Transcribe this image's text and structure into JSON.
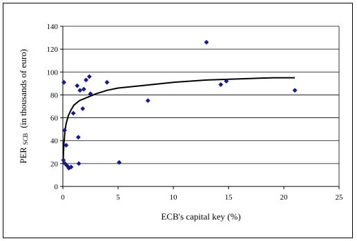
{
  "chart_data": {
    "type": "scatter",
    "title": "",
    "xlabel": "ECB's capital key (%)",
    "ylabel": "PER",
    "ylabel_subscript": "SCB",
    "ylabel_suffix": "(in thousands of euro)",
    "xlim": [
      0,
      25
    ],
    "ylim": [
      0,
      140
    ],
    "x_ticks": [
      0,
      5,
      10,
      15,
      20,
      25
    ],
    "y_ticks": [
      0,
      20,
      40,
      60,
      80,
      100,
      120,
      140
    ],
    "grid": "horizontal",
    "legend": "none",
    "marker_color": "#1a1a80",
    "series": [
      {
        "points": [
          {
            "x": 0.05,
            "y": 23
          },
          {
            "x": 0.1,
            "y": 91
          },
          {
            "x": 0.15,
            "y": 49
          },
          {
            "x": 0.2,
            "y": 20
          },
          {
            "x": 0.3,
            "y": 36
          },
          {
            "x": 0.4,
            "y": 18
          },
          {
            "x": 0.55,
            "y": 16
          },
          {
            "x": 0.75,
            "y": 17
          },
          {
            "x": 0.95,
            "y": 64
          },
          {
            "x": 1.3,
            "y": 88
          },
          {
            "x": 1.4,
            "y": 43
          },
          {
            "x": 1.45,
            "y": 20
          },
          {
            "x": 1.55,
            "y": 84
          },
          {
            "x": 1.8,
            "y": 68
          },
          {
            "x": 1.9,
            "y": 85
          },
          {
            "x": 2.1,
            "y": 93
          },
          {
            "x": 2.4,
            "y": 96
          },
          {
            "x": 2.5,
            "y": 81
          },
          {
            "x": 4.0,
            "y": 91
          },
          {
            "x": 5.1,
            "y": 21
          },
          {
            "x": 7.7,
            "y": 75
          },
          {
            "x": 13.0,
            "y": 126
          },
          {
            "x": 14.3,
            "y": 89
          },
          {
            "x": 14.8,
            "y": 92
          },
          {
            "x": 21.0,
            "y": 84
          }
        ]
      }
    ],
    "trendline": {
      "type": "logarithmic",
      "x": [
        0.03,
        0.05,
        0.1,
        0.2,
        0.3,
        0.5,
        0.75,
        1,
        1.5,
        2,
        3,
        4,
        5,
        7,
        10,
        13,
        16,
        19,
        21
      ],
      "y": [
        20,
        28,
        38,
        49,
        55,
        62,
        67,
        71,
        75,
        77,
        81,
        84,
        86,
        88,
        91,
        93,
        94,
        95,
        95
      ]
    }
  }
}
